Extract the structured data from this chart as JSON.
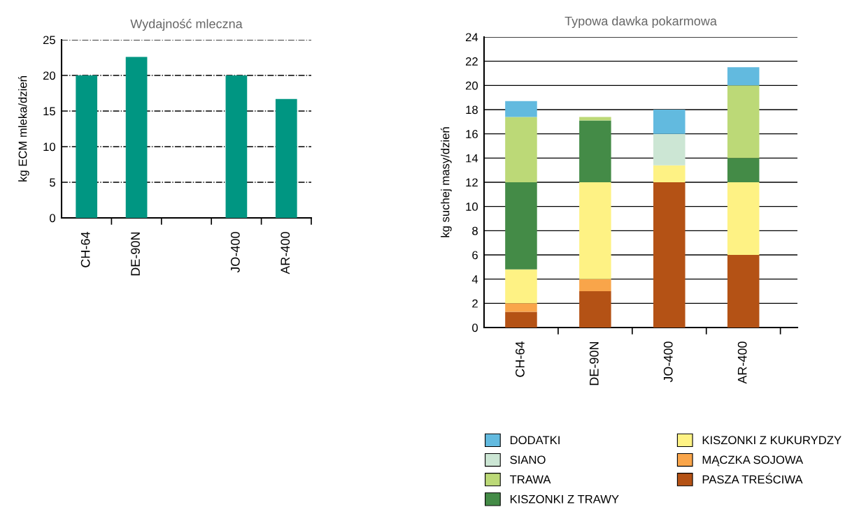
{
  "chart_data": [
    {
      "type": "bar",
      "title": "Wydajność mleczna",
      "ylabel": "kg ECM mleka/dzień",
      "categories": [
        "CH-64",
        "DE-90N",
        null,
        "JO-400",
        "AR-400"
      ],
      "values": [
        20,
        22.6,
        null,
        20,
        16.7
      ],
      "color": "#009682",
      "ylim": [
        0,
        25
      ],
      "yticks": [
        0,
        5,
        10,
        15,
        20,
        25
      ],
      "grid": "y",
      "line_style": "dashdot"
    },
    {
      "type": "bar",
      "title": "Typowa dawka pokarmowa",
      "ylabel": "kg suchej masy/dzień",
      "stacked": true,
      "categories": [
        "CH-64",
        "DE-90N",
        "JO-400",
        "AR-400"
      ],
      "series": [
        {
          "name": "PASZA TREŚCIWA",
          "color": "#b45215",
          "values": [
            1.3,
            3,
            12,
            6
          ]
        },
        {
          "name": "MĄCZKA SOJOWA",
          "color": "#f9a54a",
          "values": [
            0.7,
            1,
            null,
            null
          ]
        },
        {
          "name": "KISZONKI Z KUKURYDZY",
          "color": "#fef284",
          "values": [
            2.8,
            8,
            1.4,
            6
          ]
        },
        {
          "name": "KISZONKI Z TRAWY",
          "color": "#448b47",
          "values": [
            7.2,
            5.1,
            null,
            2
          ]
        },
        {
          "name": "TRAWA",
          "color": "#bcd977",
          "values": [
            5.4,
            0.3,
            null,
            6
          ]
        },
        {
          "name": "SIANO",
          "color": "#cce6d4",
          "values": [
            null,
            null,
            2.6,
            null
          ]
        },
        {
          "name": "DODATKI",
          "color": "#62badf",
          "values": [
            1.3,
            null,
            2,
            1.5
          ]
        }
      ],
      "ylim": [
        0,
        24
      ],
      "yticks": [
        0,
        2,
        4,
        6,
        8,
        10,
        12,
        14,
        16,
        18,
        20,
        22,
        24
      ],
      "grid": "y",
      "line_style": "solid",
      "legend": "bottom"
    }
  ]
}
